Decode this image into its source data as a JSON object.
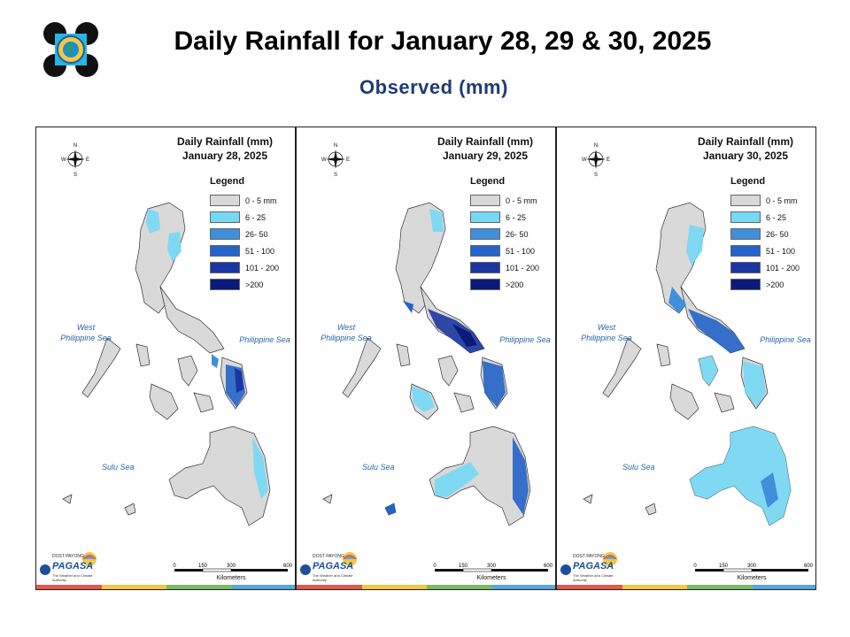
{
  "header": {
    "title": "Daily Rainfall for January 28, 29 & 30, 2025",
    "subtitle": "Observed (mm)"
  },
  "legend": {
    "title": "Legend",
    "items": [
      {
        "label": "0 - 5 mm",
        "color": "#d9d9d9"
      },
      {
        "label": "6 - 25",
        "color": "#75d8f5"
      },
      {
        "label": "26- 50",
        "color": "#3f8fdd"
      },
      {
        "label": "51 - 100",
        "color": "#2463c8"
      },
      {
        "label": "101 - 200",
        "color": "#1b36a0"
      },
      {
        "label": ">200",
        "color": "#0b1a7a"
      }
    ]
  },
  "panels": [
    {
      "title_line1": "Daily Rainfall (mm)",
      "title_line2": "January 28, 2025"
    },
    {
      "title_line1": "Daily Rainfall (mm)",
      "title_line2": "January 29, 2025"
    },
    {
      "title_line1": "Daily Rainfall (mm)",
      "title_line2": "January 30, 2025"
    }
  ],
  "labels": {
    "west_sea_line1": "West",
    "west_sea_line2": "Philippine Sea",
    "phil_sea": "Philippine Sea",
    "sulu_sea": "Sulu Sea",
    "compass_n": "N",
    "compass_s": "S",
    "compass_e": "E",
    "compass_w": "W",
    "scale_0": "0",
    "scale_150": "150",
    "scale_300": "300",
    "scale_600": "600",
    "scale_unit": "Kilometers",
    "brand_name": "PAGASA",
    "brand_small": "DOST PAYONG",
    "brand_tagline": "The Weather and Climate Authority"
  },
  "stripe_colors": [
    "#e05a4a",
    "#f2c744",
    "#7cb96a",
    "#5aa6d9"
  ]
}
